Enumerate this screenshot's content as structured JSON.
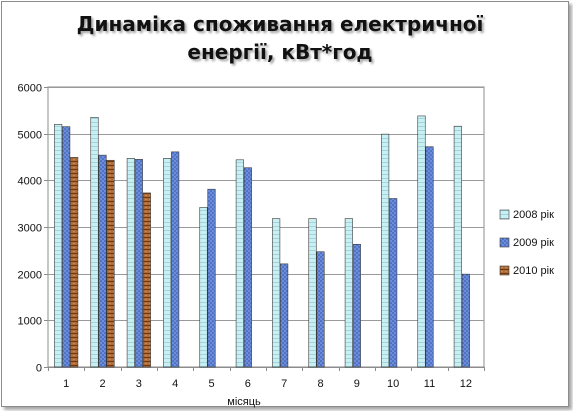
{
  "chart_data": {
    "type": "bar",
    "title_line1": "Динаміка споживання електричної",
    "title_line2": "енергії, кВт*год",
    "xlabel": "місяць",
    "ylabel": "",
    "ylim": [
      0,
      6000
    ],
    "yticks": [
      0,
      1000,
      2000,
      3000,
      4000,
      5000,
      6000
    ],
    "categories": [
      "1",
      "2",
      "3",
      "4",
      "5",
      "6",
      "7",
      "8",
      "9",
      "10",
      "11",
      "12"
    ],
    "grid": true,
    "legend_position": "right",
    "series": [
      {
        "name": "2008 рік",
        "color": "#c7eef2",
        "values": [
          5200,
          5350,
          4470,
          4470,
          3420,
          4440,
          3180,
          3180,
          3180,
          4990,
          5380,
          5160
        ]
      },
      {
        "name": "2009 рік",
        "color": "#5b7fd6",
        "values": [
          5150,
          4540,
          4450,
          4610,
          3810,
          4270,
          2210,
          2470,
          2630,
          3610,
          4720,
          1990
        ]
      },
      {
        "name": "2010 рік",
        "color": "#9a5a2c",
        "values": [
          4490,
          4430,
          3730,
          null,
          null,
          null,
          null,
          null,
          null,
          null,
          null,
          null
        ]
      }
    ]
  }
}
